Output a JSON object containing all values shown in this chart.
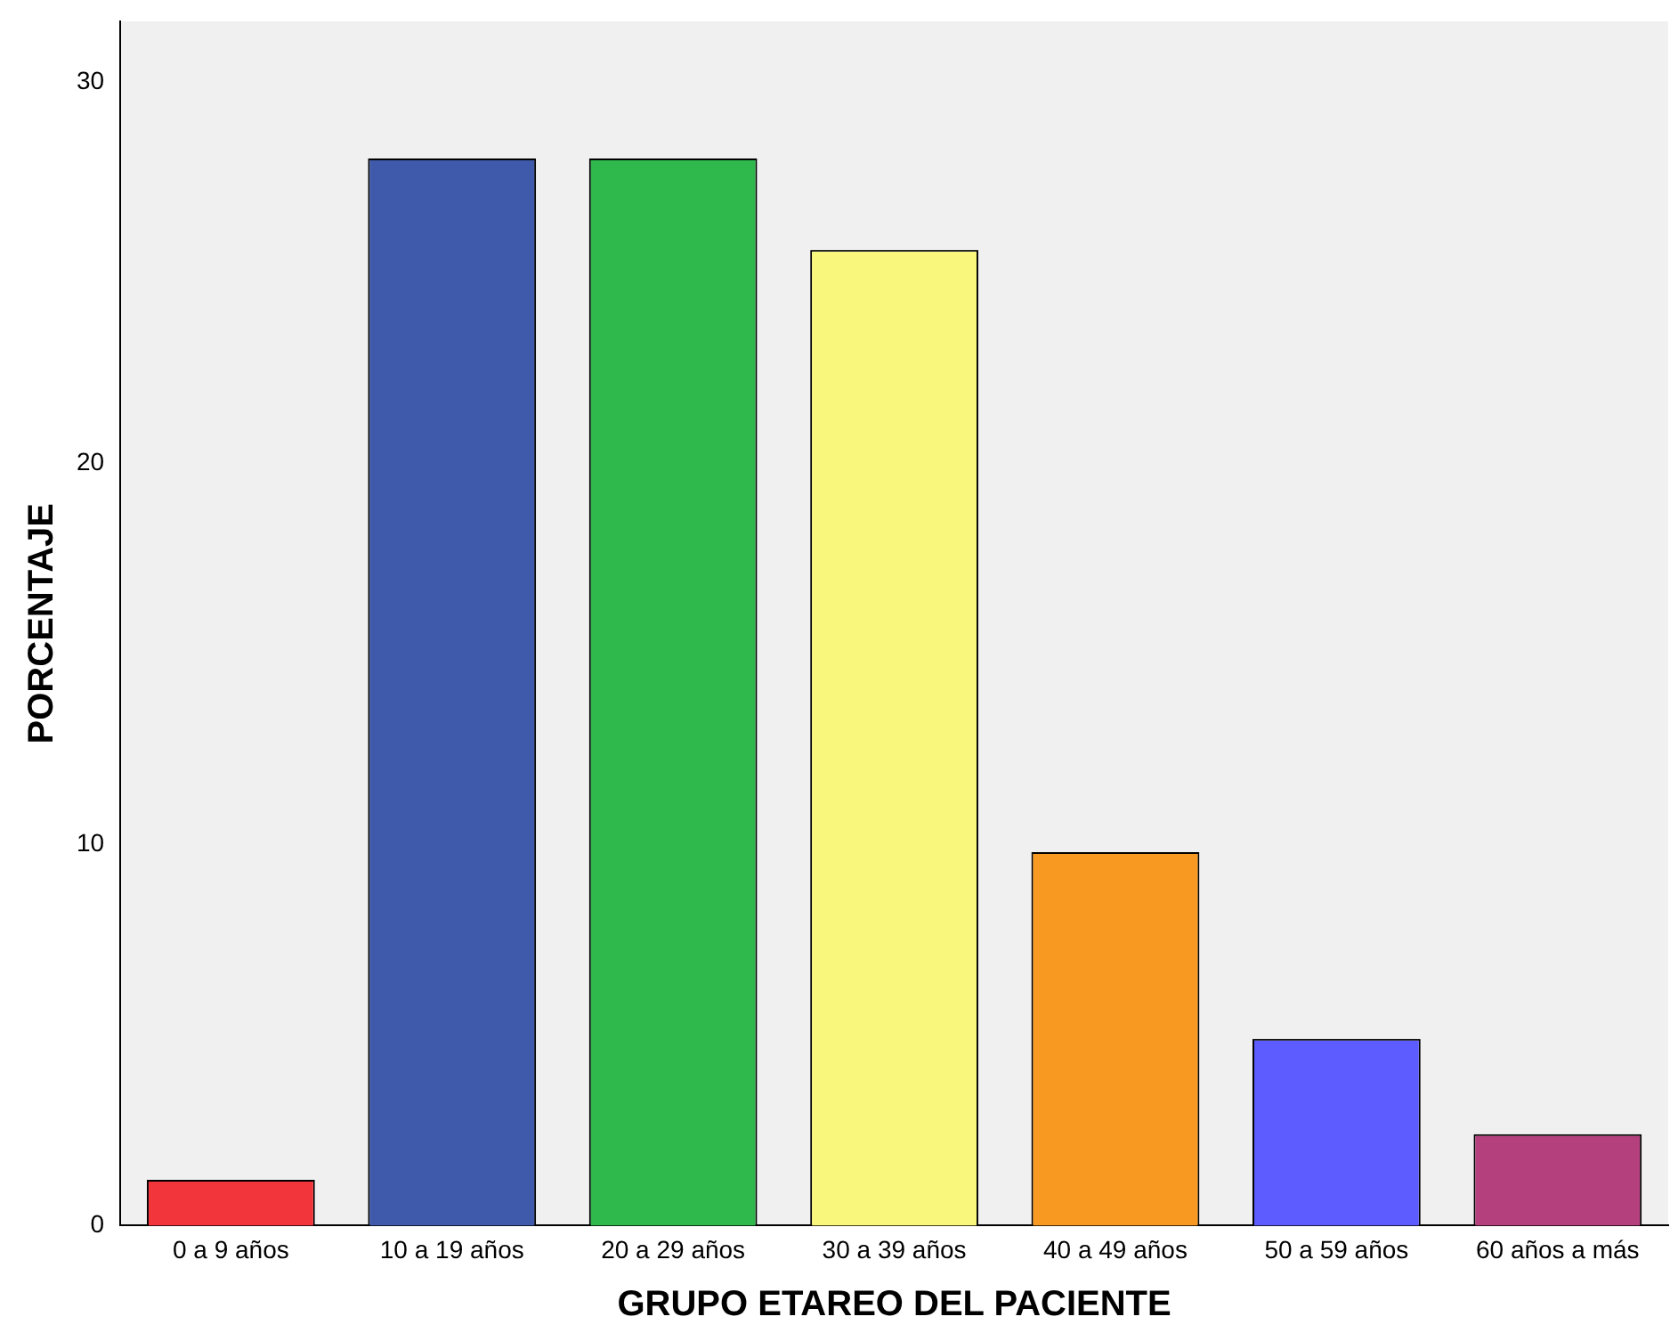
{
  "chart_data": {
    "type": "bar",
    "xlabel": "GRUPO ETAREO DEL PACIENTE",
    "ylabel": "PORCENTAJE",
    "categories": [
      "0 a 9 años",
      "10 a 19 años",
      "20 a 29 años",
      "30 a 39 años",
      "40 a 49 años",
      "50 a 59 años",
      "60 años a más"
    ],
    "values": [
      1.2,
      28.0,
      28.0,
      25.6,
      9.8,
      4.9,
      2.4
    ],
    "colors": [
      "#f2353b",
      "#3f5aaa",
      "#2fb84b",
      "#f9f77c",
      "#f89a21",
      "#5c5cff",
      "#b5407e"
    ],
    "ylim": [
      0,
      31.6
    ],
    "yticks": [
      0,
      10,
      20,
      30
    ],
    "grid": false,
    "legend": false
  }
}
